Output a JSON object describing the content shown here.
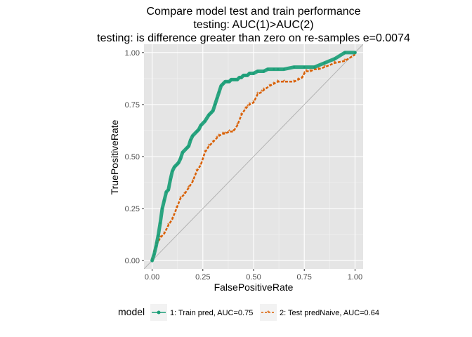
{
  "chart_data": {
    "type": "line",
    "title_lines": [
      "Compare model test and train performance",
      "testing: AUC(1)>AUC(2)",
      "testing: is difference greater than zero on re-samples e=0.0074"
    ],
    "xlabel": "FalsePositiveRate",
    "ylabel": "TruePositiveRate",
    "xlim": [
      -0.04,
      1.04
    ],
    "ylim": [
      -0.04,
      1.04
    ],
    "x_ticks": [
      0,
      0.25,
      0.5,
      0.75,
      1
    ],
    "x_tick_labels": [
      "0.00",
      "0.25",
      "0.50",
      "0.75",
      "1.00"
    ],
    "y_ticks": [
      0,
      0.25,
      0.5,
      0.75,
      1
    ],
    "y_tick_labels": [
      "0.00",
      "0.25",
      "0.50",
      "0.75",
      "1.00"
    ],
    "grid": true,
    "background": "#e5e5e5",
    "reference_line": {
      "x": [
        0,
        1
      ],
      "y": [
        0,
        1
      ],
      "color": "#b3b3b3"
    },
    "legend": {
      "position": "bottom",
      "title": "model",
      "entries": [
        "1: Train pred, AUC=0.75",
        "2: Test predNaive, AUC=0.64"
      ]
    },
    "series": [
      {
        "name": "1: Train pred, AUC=0.75",
        "color": "#1b9e77",
        "x": [
          0,
          0.01,
          0.02,
          0.03,
          0.04,
          0.05,
          0.06,
          0.07,
          0.08,
          0.09,
          0.1,
          0.11,
          0.12,
          0.13,
          0.14,
          0.15,
          0.17,
          0.18,
          0.19,
          0.2,
          0.22,
          0.23,
          0.24,
          0.26,
          0.28,
          0.29,
          0.3,
          0.31,
          0.32,
          0.33,
          0.34,
          0.35,
          0.36,
          0.37,
          0.38,
          0.39,
          0.4,
          0.41,
          0.42,
          0.43,
          0.44,
          0.45,
          0.46,
          0.47,
          0.48,
          0.5,
          0.52,
          0.55,
          0.57,
          0.6,
          0.62,
          0.65,
          0.7,
          0.75,
          0.8,
          0.85,
          0.9,
          0.95,
          1.0
        ],
        "y": [
          0,
          0.03,
          0.07,
          0.12,
          0.18,
          0.25,
          0.29,
          0.33,
          0.34,
          0.39,
          0.43,
          0.45,
          0.46,
          0.47,
          0.49,
          0.52,
          0.54,
          0.55,
          0.58,
          0.6,
          0.62,
          0.63,
          0.65,
          0.67,
          0.7,
          0.71,
          0.72,
          0.75,
          0.78,
          0.81,
          0.84,
          0.85,
          0.86,
          0.86,
          0.86,
          0.87,
          0.87,
          0.87,
          0.87,
          0.88,
          0.88,
          0.89,
          0.89,
          0.89,
          0.9,
          0.9,
          0.91,
          0.91,
          0.92,
          0.92,
          0.92,
          0.92,
          0.93,
          0.93,
          0.93,
          0.95,
          0.97,
          1.0,
          1.0
        ]
      },
      {
        "name": "2: Test predNaive, AUC=0.64",
        "color": "#d95f02",
        "x": [
          0,
          0.01,
          0.02,
          0.03,
          0.04,
          0.06,
          0.08,
          0.1,
          0.12,
          0.14,
          0.16,
          0.18,
          0.2,
          0.22,
          0.24,
          0.26,
          0.28,
          0.3,
          0.32,
          0.33,
          0.35,
          0.36,
          0.38,
          0.4,
          0.42,
          0.44,
          0.46,
          0.47,
          0.48,
          0.5,
          0.52,
          0.54,
          0.55,
          0.58,
          0.6,
          0.62,
          0.65,
          0.7,
          0.72,
          0.74,
          0.75,
          0.76,
          0.78,
          0.8,
          0.82,
          0.85,
          0.9,
          0.95,
          1.0
        ],
        "y": [
          0,
          0.04,
          0.08,
          0.09,
          0.11,
          0.13,
          0.17,
          0.2,
          0.25,
          0.3,
          0.32,
          0.35,
          0.38,
          0.43,
          0.46,
          0.52,
          0.55,
          0.57,
          0.59,
          0.6,
          0.61,
          0.61,
          0.62,
          0.62,
          0.65,
          0.7,
          0.73,
          0.74,
          0.75,
          0.76,
          0.8,
          0.81,
          0.82,
          0.84,
          0.85,
          0.86,
          0.86,
          0.86,
          0.87,
          0.88,
          0.9,
          0.91,
          0.91,
          0.92,
          0.92,
          0.93,
          0.95,
          0.96,
          0.99
        ]
      }
    ]
  }
}
